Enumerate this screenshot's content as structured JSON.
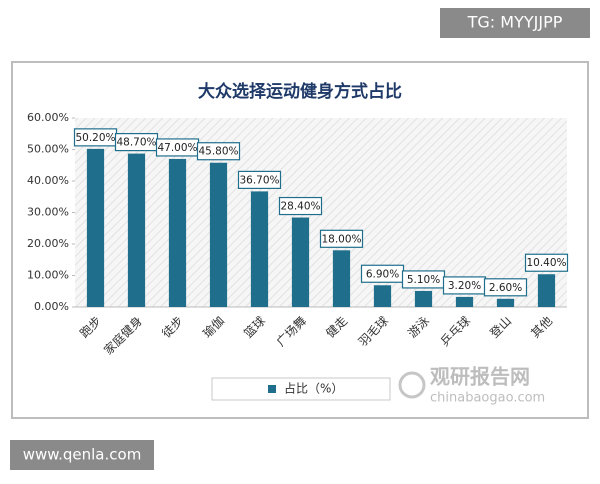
{
  "tg_label": "TG: MYYJJPP",
  "site_label": "www.qenla.com",
  "watermark_title": "观研报告网",
  "watermark_url": "chinabaogao.com",
  "chart_data": {
    "type": "bar",
    "title": "大众选择运动健身方式占比",
    "categories": [
      "跑步",
      "家庭健身",
      "徒步",
      "瑜伽",
      "篮球",
      "广场舞",
      "健走",
      "羽毛球",
      "游泳",
      "乒乓球",
      "登山",
      "其他"
    ],
    "series": [
      {
        "name": "占比（%）",
        "color": "#1f6e8c",
        "values": [
          50.2,
          48.7,
          47.0,
          45.8,
          36.7,
          28.4,
          18.0,
          6.9,
          5.1,
          3.2,
          2.6,
          10.4
        ],
        "value_labels": [
          "50.20%",
          "48.70%",
          "47.00%",
          "45.80%",
          "36.70%",
          "28.40%",
          "18.00%",
          "6.90%",
          "5.10%",
          "3.20%",
          "2.60%",
          "10.40%"
        ]
      }
    ],
    "ylim": [
      0,
      60
    ],
    "yticks": [
      {
        "value": 0,
        "label": "0.00%"
      },
      {
        "value": 10,
        "label": "10.00%"
      },
      {
        "value": 20,
        "label": "20.00%"
      },
      {
        "value": 30,
        "label": "30.00%"
      },
      {
        "value": 40,
        "label": "40.00%"
      },
      {
        "value": 50,
        "label": "50.00%"
      },
      {
        "value": 60,
        "label": "60.00%"
      }
    ]
  }
}
